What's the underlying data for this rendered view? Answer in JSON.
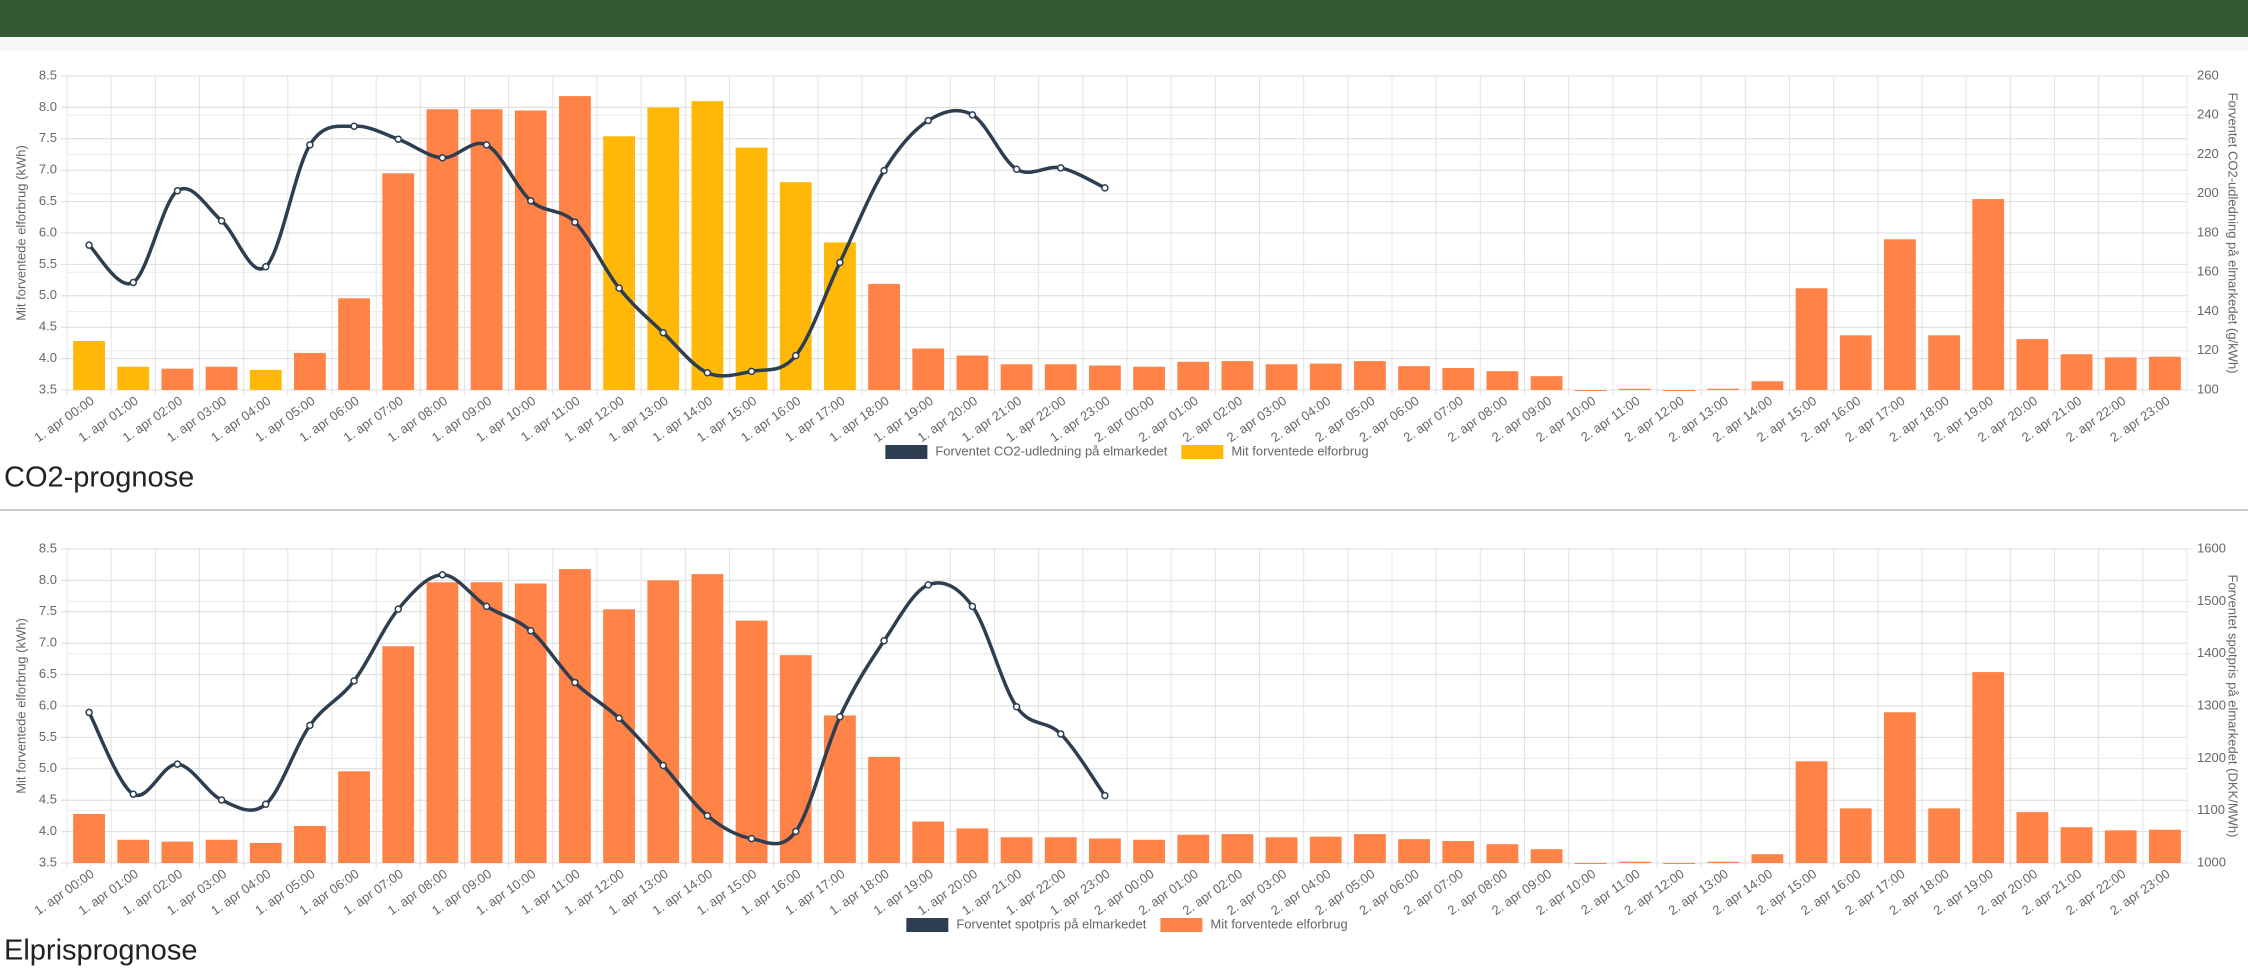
{
  "chart_data": [
    {
      "type": "bar",
      "title": "CO2-prognose",
      "categories": [
        "1. apr 00:00",
        "1. apr 01:00",
        "1. apr 02:00",
        "1. apr 03:00",
        "1. apr 04:00",
        "1. apr 05:00",
        "1. apr 06:00",
        "1. apr 07:00",
        "1. apr 08:00",
        "1. apr 09:00",
        "1. apr 10:00",
        "1. apr 11:00",
        "1. apr 12:00",
        "1. apr 13:00",
        "1. apr 14:00",
        "1. apr 15:00",
        "1. apr 16:00",
        "1. apr 17:00",
        "1. apr 18:00",
        "1. apr 19:00",
        "1. apr 20:00",
        "1. apr 21:00",
        "1. apr 22:00",
        "1. apr 23:00",
        "2. apr 00:00",
        "2. apr 01:00",
        "2. apr 02:00",
        "2. apr 03:00",
        "2. apr 04:00",
        "2. apr 05:00",
        "2. apr 06:00",
        "2. apr 07:00",
        "2. apr 08:00",
        "2. apr 09:00",
        "2. apr 10:00",
        "2. apr 11:00",
        "2. apr 12:00",
        "2. apr 13:00",
        "2. apr 14:00",
        "2. apr 15:00",
        "2. apr 16:00",
        "2. apr 17:00",
        "2. apr 18:00",
        "2. apr 19:00",
        "2. apr 20:00",
        "2. apr 21:00",
        "2. apr 22:00",
        "2. apr 23:00"
      ],
      "ylabel": "Mit forventede elforbrug (kWh)",
      "y2label": "Forventet CO2-udledning på elmarkedet (g/kWh)",
      "ylim": [
        3.5,
        8.5
      ],
      "yticks": [
        3.5,
        {
          "value": 4,
          "label": "4.0"
        },
        4.5,
        {
          "value": 5,
          "label": "5.0"
        },
        5.5,
        {
          "value": 6,
          "label": "6.0"
        },
        6.5,
        {
          "value": 7,
          "label": "7.0"
        },
        7.5,
        {
          "value": 8,
          "label": "8.0"
        },
        8.5
      ],
      "y2lim": [
        100,
        260
      ],
      "y2ticks": [
        100,
        120,
        140,
        160,
        180,
        200,
        220,
        240,
        260
      ],
      "grid": true,
      "series": [
        {
          "name": "Forventet CO2-udledning på elmarkedet",
          "type": "line",
          "axis": "y2",
          "color": "#2c3e50",
          "values": [
            173.8,
            154.8,
            201.5,
            186.2,
            162.8,
            224.9,
            234.4,
            227.8,
            218.3,
            224.9,
            196.4,
            185.5,
            151.9,
            129.2,
            108.8,
            109.5,
            117.5,
            165,
            211.8,
            237.3,
            240.2,
            212.5,
            213.2,
            203,
            null,
            null,
            null,
            null,
            null,
            null,
            null,
            null,
            null,
            null,
            null,
            null,
            null,
            null,
            null,
            null,
            null,
            null,
            null,
            null,
            null,
            null,
            null,
            null
          ]
        },
        {
          "name": "Mit forventede elforbrug",
          "type": "bar",
          "color": "#ffb808",
          "colors": [
            "#ffb808",
            "#ffb808",
            "#ff8247",
            "#ff8247",
            "#ffb808",
            "#ff8247",
            "#ff8247",
            "#ff8247",
            "#ff8247",
            "#ff8247",
            "#ff8247",
            "#ff8247",
            "#ffb808",
            "#ffb808",
            "#ffb808",
            "#ffb808",
            "#ffb808",
            "#ffb808",
            "#ff8247",
            "#ff8247",
            "#ff8247",
            "#ff8247",
            "#ff8247",
            "#ff8247",
            "#ff8247",
            "#ff8247",
            "#ff8247",
            "#ff8247",
            "#ff8247",
            "#ff8247",
            "#ff8247",
            "#ff8247",
            "#ff8247",
            "#ff8247",
            "#ff8247",
            "#ff8247",
            "#ff8247",
            "#ff8247",
            "#ff8247",
            "#ff8247",
            "#ff8247",
            "#ff8247",
            "#ff8247",
            "#ff8247",
            "#ff8247",
            "#ff8247",
            "#ff8247",
            "#ff8247"
          ],
          "values": [
            4.28,
            3.87,
            3.84,
            3.87,
            3.82,
            4.09,
            4.96,
            6.95,
            7.97,
            7.97,
            7.95,
            8.18,
            7.54,
            8.0,
            8.1,
            7.36,
            6.81,
            5.85,
            5.19,
            4.16,
            4.05,
            3.91,
            3.91,
            3.89,
            3.87,
            3.95,
            3.96,
            3.91,
            3.92,
            3.96,
            3.88,
            3.85,
            3.8,
            3.72,
            3.5,
            3.52,
            3.5,
            3.52,
            3.64,
            5.12,
            4.37,
            5.9,
            4.37,
            6.54,
            4.31,
            4.07,
            4.02,
            4.03
          ]
        }
      ]
    },
    {
      "type": "bar",
      "title": "Elprisprognose",
      "categories": [
        "1. apr 00:00",
        "1. apr 01:00",
        "1. apr 02:00",
        "1. apr 03:00",
        "1. apr 04:00",
        "1. apr 05:00",
        "1. apr 06:00",
        "1. apr 07:00",
        "1. apr 08:00",
        "1. apr 09:00",
        "1. apr 10:00",
        "1. apr 11:00",
        "1. apr 12:00",
        "1. apr 13:00",
        "1. apr 14:00",
        "1. apr 15:00",
        "1. apr 16:00",
        "1. apr 17:00",
        "1. apr 18:00",
        "1. apr 19:00",
        "1. apr 20:00",
        "1. apr 21:00",
        "1. apr 22:00",
        "1. apr 23:00",
        "2. apr 00:00",
        "2. apr 01:00",
        "2. apr 02:00",
        "2. apr 03:00",
        "2. apr 04:00",
        "2. apr 05:00",
        "2. apr 06:00",
        "2. apr 07:00",
        "2. apr 08:00",
        "2. apr 09:00",
        "2. apr 10:00",
        "2. apr 11:00",
        "2. apr 12:00",
        "2. apr 13:00",
        "2. apr 14:00",
        "2. apr 15:00",
        "2. apr 16:00",
        "2. apr 17:00",
        "2. apr 18:00",
        "2. apr 19:00",
        "2. apr 20:00",
        "2. apr 21:00",
        "2. apr 22:00",
        "2. apr 23:00"
      ],
      "ylabel": "Mit forventede elforbrug (kWh)",
      "y2label": "Forventet spotpris på elmarkedet (DKK/MWh)",
      "ylim": [
        3.5,
        8.5
      ],
      "yticks": [
        3.5,
        {
          "value": 4,
          "label": "4.0"
        },
        4.5,
        {
          "value": 5,
          "label": "5.0"
        },
        5.5,
        {
          "value": 6,
          "label": "6.0"
        },
        6.5,
        {
          "value": 7,
          "label": "7.0"
        },
        7.5,
        {
          "value": 8,
          "label": "8.0"
        },
        8.5
      ],
      "y2lim": [
        1000,
        1600
      ],
      "y2ticks": [
        1000,
        1100,
        1200,
        1300,
        1400,
        1500,
        1600
      ],
      "grid": true,
      "series": [
        {
          "name": "Forventet spotpris på elmarkedet",
          "type": "line",
          "axis": "y2",
          "color": "#2c3e50",
          "values": [
            1287.7,
            1131.5,
            1189,
            1120.5,
            1112.3,
            1263,
            1348,
            1485,
            1550.7,
            1490.4,
            1443.8,
            1345,
            1276.7,
            1186.3,
            1090.4,
            1046.6,
            1060.3,
            1279.5,
            1424.7,
            1531.5,
            1490.4,
            1298.6,
            1246.6,
            1128.8,
            null,
            null,
            null,
            null,
            null,
            null,
            null,
            null,
            null,
            null,
            null,
            null,
            null,
            null,
            null,
            null,
            null,
            null,
            null,
            null,
            null,
            null,
            null,
            null
          ]
        },
        {
          "name": "Mit forventede elforbrug",
          "type": "bar",
          "color": "#ff8247",
          "values": [
            4.28,
            3.87,
            3.84,
            3.87,
            3.82,
            4.09,
            4.96,
            6.95,
            7.97,
            7.97,
            7.95,
            8.18,
            7.54,
            8.0,
            8.1,
            7.36,
            6.81,
            5.85,
            5.19,
            4.16,
            4.05,
            3.91,
            3.91,
            3.89,
            3.87,
            3.95,
            3.96,
            3.91,
            3.92,
            3.96,
            3.88,
            3.85,
            3.8,
            3.72,
            3.5,
            3.52,
            3.5,
            3.52,
            3.64,
            5.12,
            4.37,
            5.9,
            4.37,
            6.54,
            4.31,
            4.07,
            4.02,
            4.03
          ]
        }
      ]
    }
  ]
}
